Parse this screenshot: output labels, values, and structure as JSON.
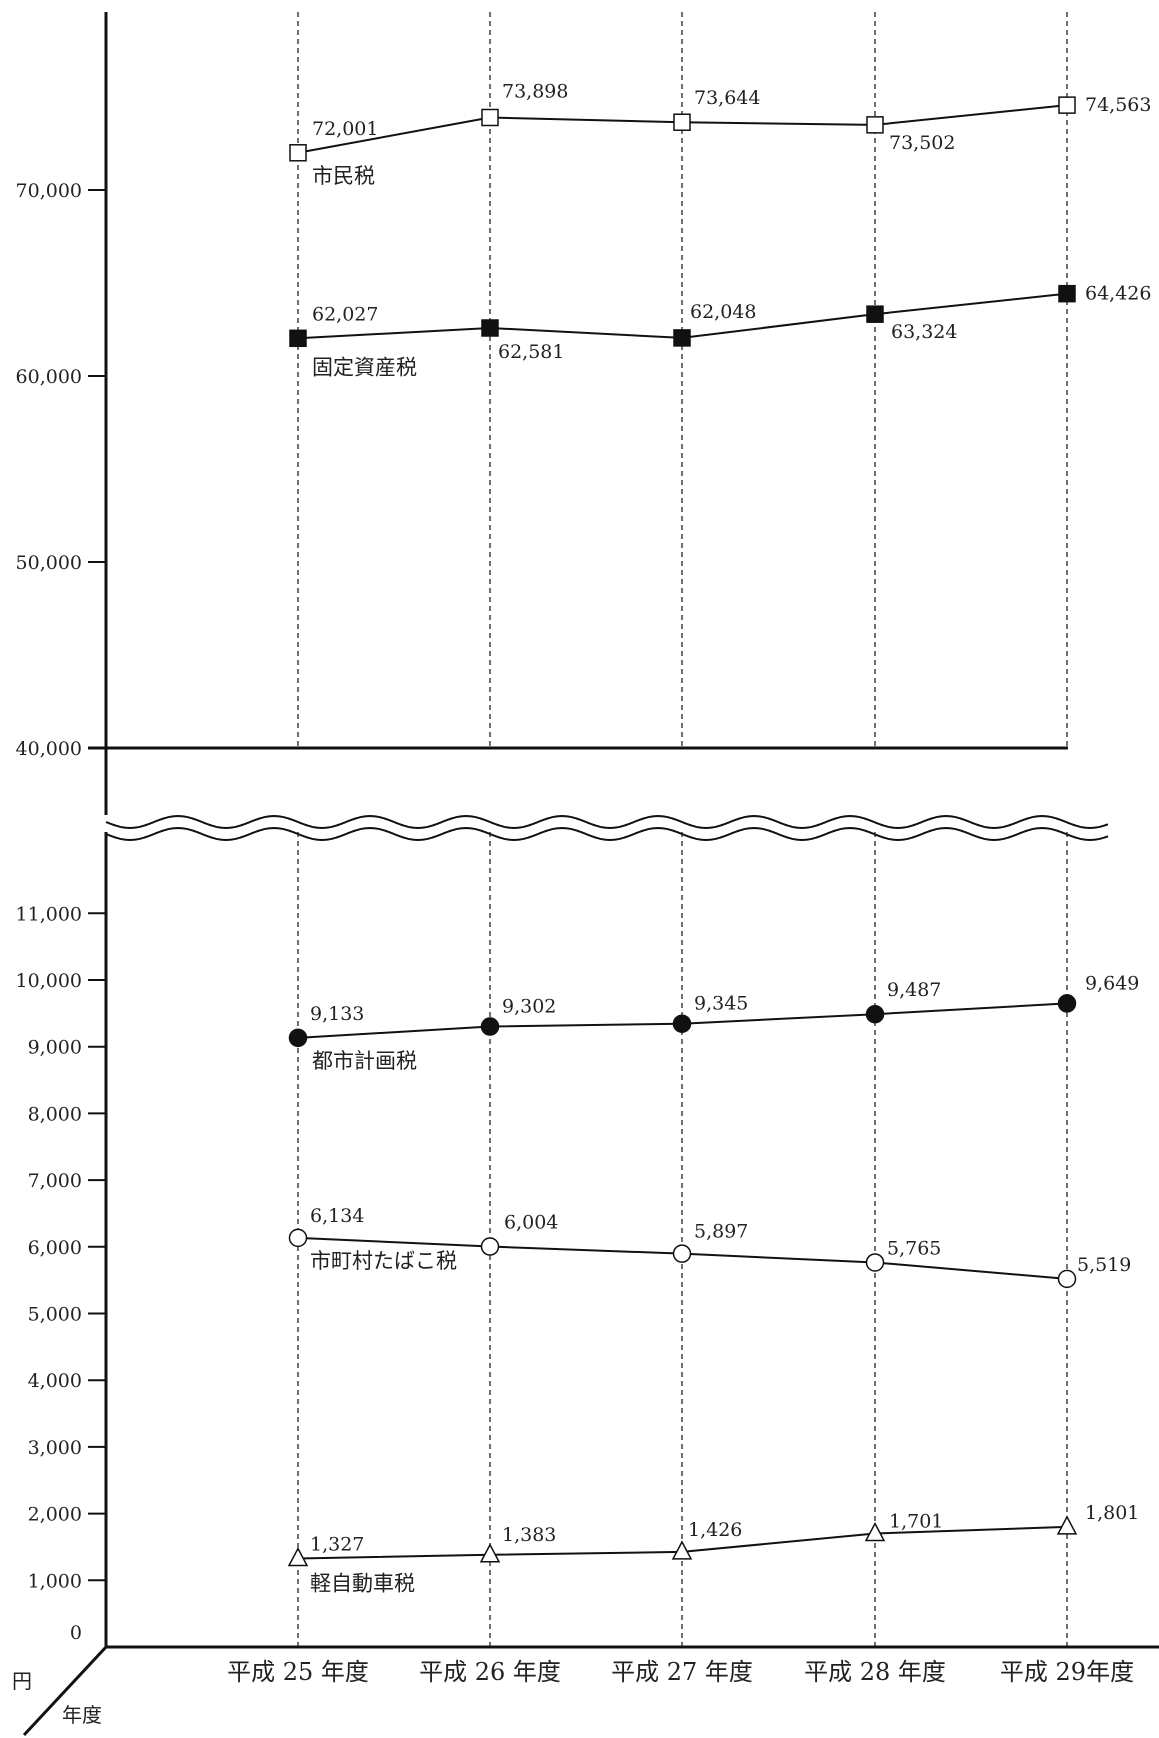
{
  "chart_data": [
    {
      "type": "line",
      "panel": "upper",
      "categories": [
        "平成 25 年度",
        "平成 26 年度",
        "平成 27 年度",
        "平成 28 年度",
        "平成 29年度"
      ],
      "ylim": [
        40000,
        79000
      ],
      "yticks": [
        {
          "value": 40000,
          "label": "40,000"
        },
        {
          "value": 50000,
          "label": "50,000"
        },
        {
          "value": 60000,
          "label": "60,000"
        },
        {
          "value": 70000,
          "label": "70,000"
        }
      ],
      "grid": "vertical dashed lines at each category",
      "series": [
        {
          "name": "市民税",
          "marker": "open-square",
          "values": [
            72001,
            73898,
            73644,
            73502,
            74563
          ],
          "labels": [
            "72,001",
            "73,898",
            "73,644",
            "73,502",
            "74,563"
          ]
        },
        {
          "name": "固定資産税",
          "marker": "filled-square",
          "values": [
            62027,
            62581,
            62048,
            63324,
            64426
          ],
          "labels": [
            "62,027",
            "62,581",
            "62,048",
            "63,324",
            "64,426"
          ]
        }
      ]
    },
    {
      "type": "line",
      "panel": "lower",
      "categories": [
        "平成 25 年度",
        "平成 26 年度",
        "平成 27 年度",
        "平成 28 年度",
        "平成 29年度"
      ],
      "ylim": [
        0,
        12000
      ],
      "yticks": [
        {
          "value": 0,
          "label": "0"
        },
        {
          "value": 1000,
          "label": "1,000"
        },
        {
          "value": 2000,
          "label": "2,000"
        },
        {
          "value": 3000,
          "label": "3,000"
        },
        {
          "value": 4000,
          "label": "4,000"
        },
        {
          "value": 5000,
          "label": "5,000"
        },
        {
          "value": 6000,
          "label": "6,000"
        },
        {
          "value": 7000,
          "label": "7,000"
        },
        {
          "value": 8000,
          "label": "8,000"
        },
        {
          "value": 9000,
          "label": "9,000"
        },
        {
          "value": 10000,
          "label": "10,000"
        },
        {
          "value": 11000,
          "label": "11,000"
        }
      ],
      "grid": "vertical dashed lines at each category",
      "series": [
        {
          "name": "都市計画税",
          "marker": "filled-circle",
          "values": [
            9133,
            9302,
            9345,
            9487,
            9649
          ],
          "labels": [
            "9,133",
            "9,302",
            "9,345",
            "9,487",
            "9,649"
          ]
        },
        {
          "name": "市町村たばこ税",
          "marker": "open-circle",
          "values": [
            6134,
            6004,
            5897,
            5765,
            5519
          ],
          "labels": [
            "6,134",
            "6,004",
            "5,897",
            "5,765",
            "5,519"
          ]
        },
        {
          "name": "軽自動車税",
          "marker": "open-triangle",
          "values": [
            1327,
            1383,
            1426,
            1701,
            1801
          ],
          "labels": [
            "1,327",
            "1,383",
            "1,426",
            "1,701",
            "1,801"
          ]
        }
      ]
    }
  ],
  "axis_break": "wavy double line between panels",
  "corner": {
    "y_unit": "円",
    "x_unit": "年度"
  },
  "colors": {
    "line": "#111111",
    "text": "#222222",
    "background": "#ffffff"
  }
}
